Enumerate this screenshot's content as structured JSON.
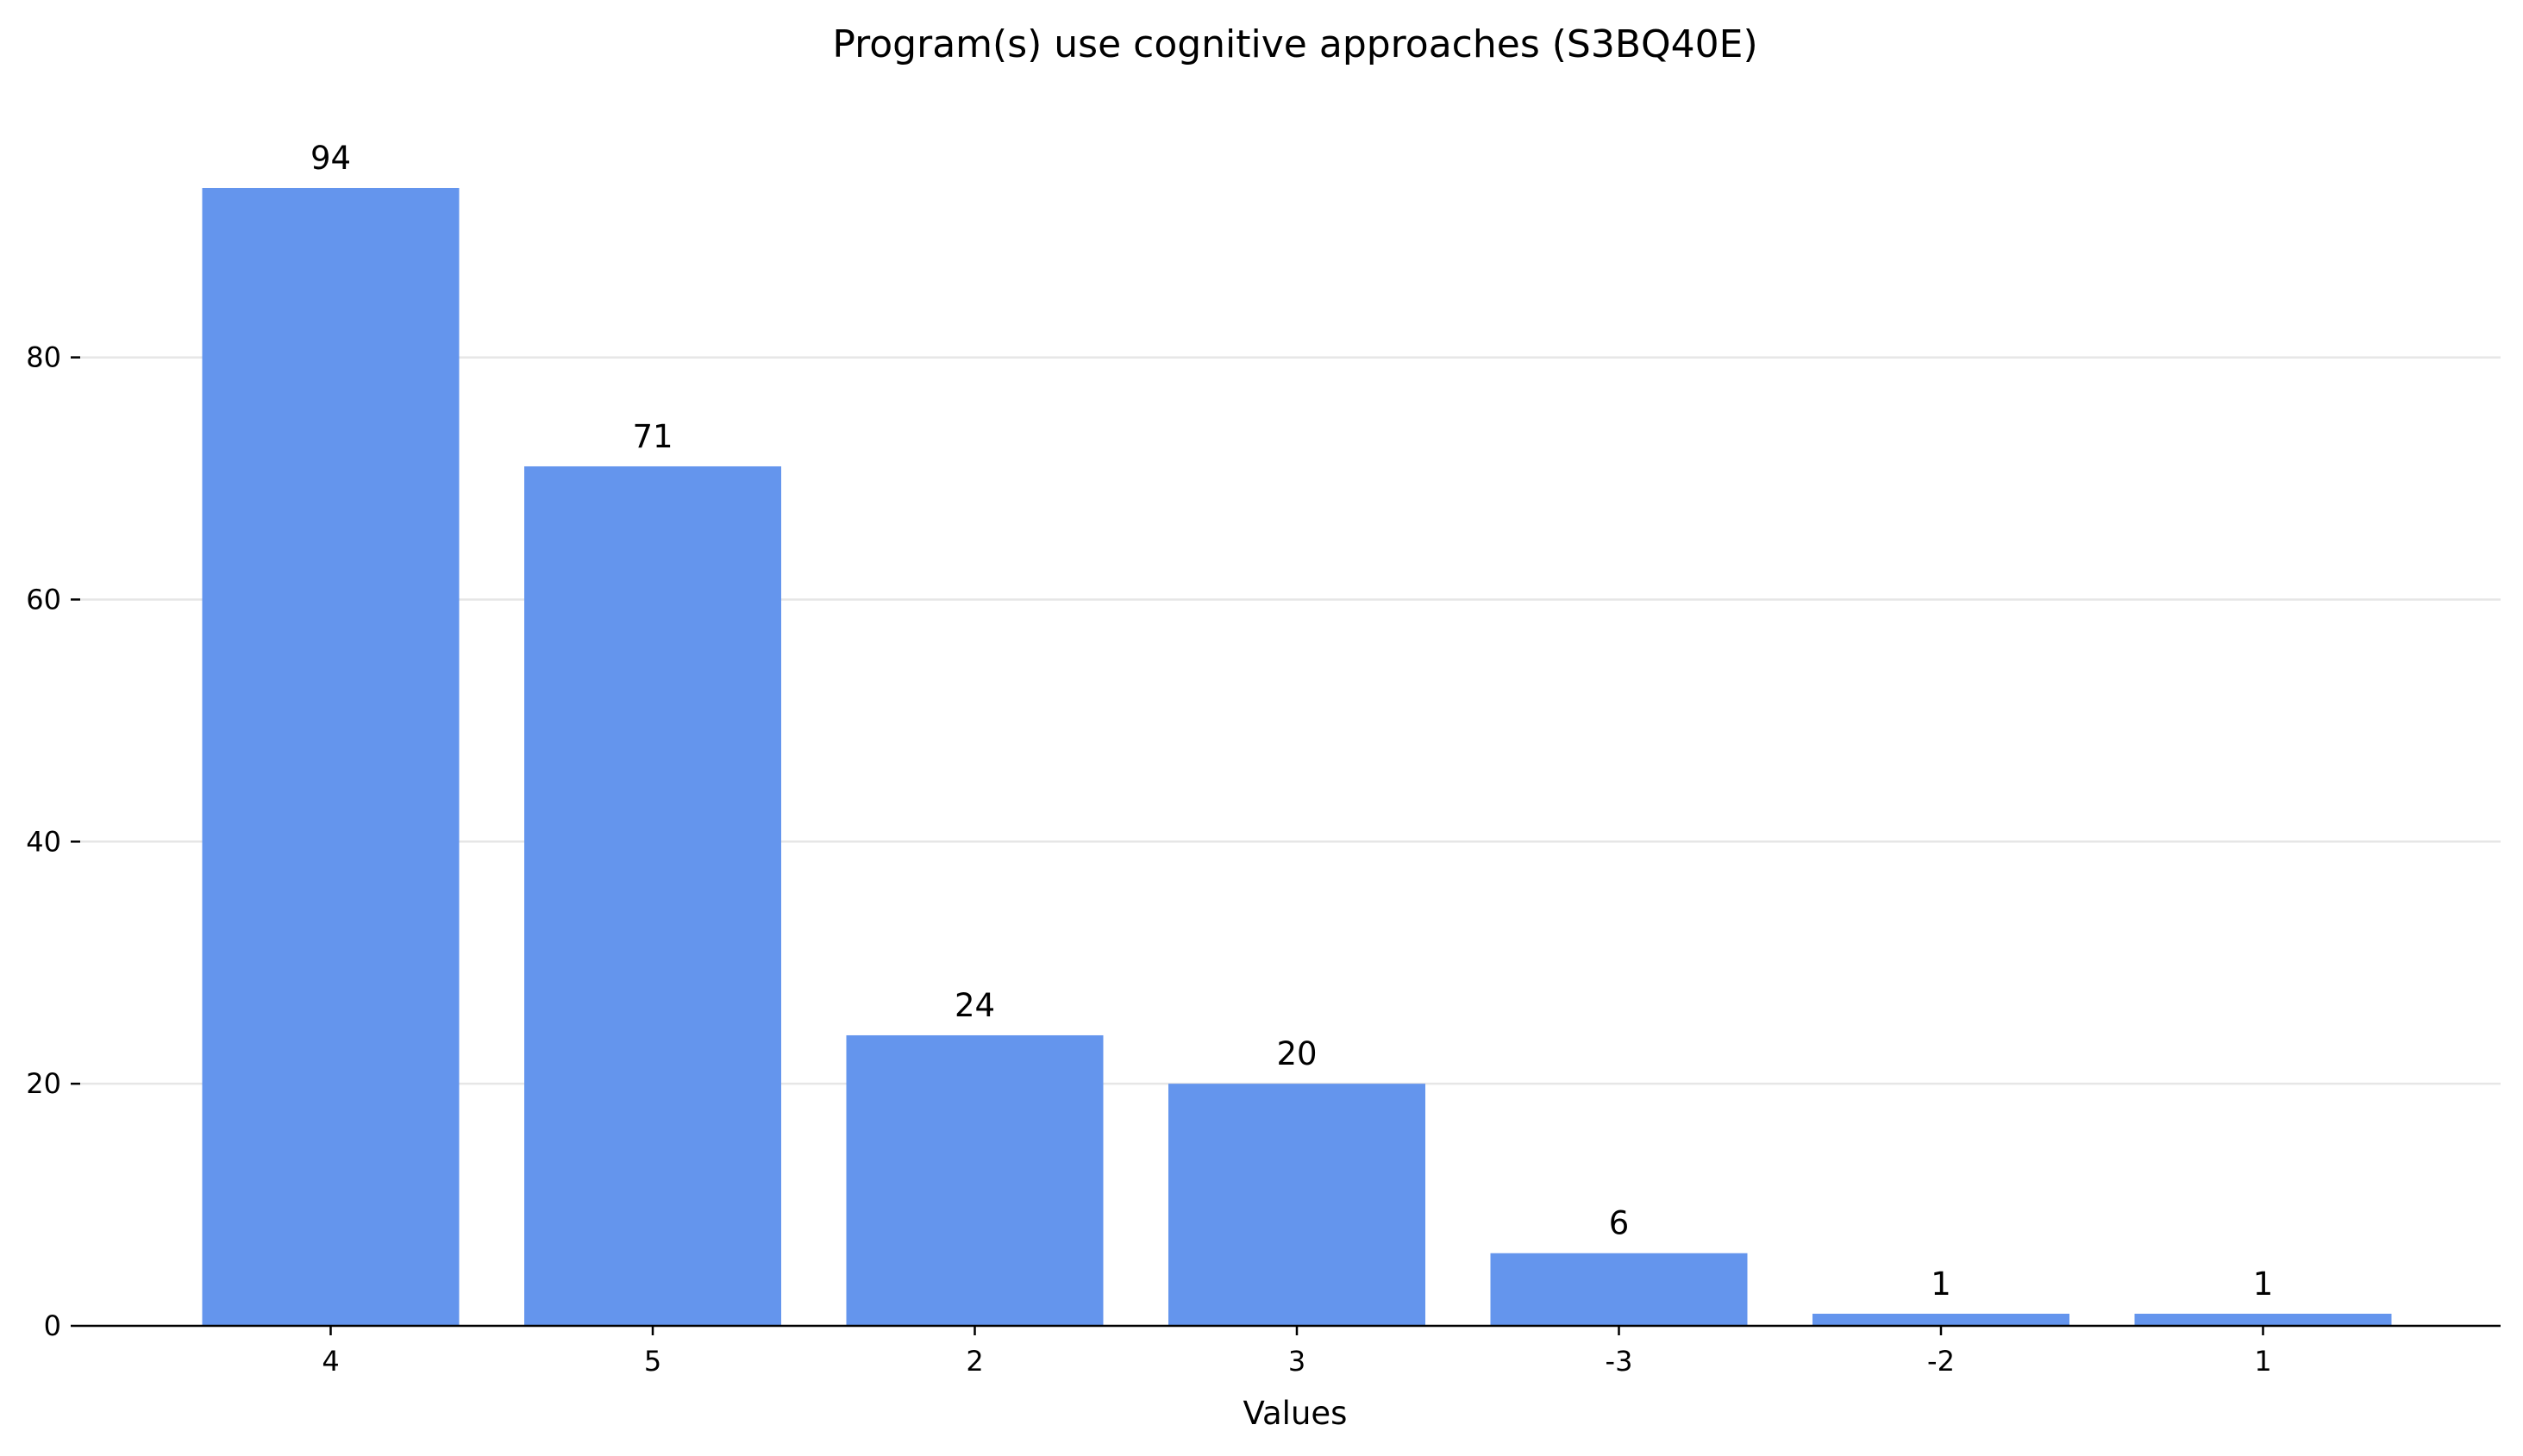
{
  "chart_data": {
    "type": "bar",
    "title": "Program(s) use cognitive approaches (S3BQ40E)",
    "xlabel": "Values",
    "ylabel": "",
    "categories": [
      "4",
      "5",
      "2",
      "3",
      "-3",
      "-2",
      "1"
    ],
    "values": [
      94,
      71,
      24,
      20,
      6,
      1,
      1
    ],
    "data_labels": [
      "94",
      "71",
      "24",
      "20",
      "6",
      "1",
      "1"
    ],
    "ylim": [
      0,
      100
    ],
    "yticks": [
      0,
      20,
      40,
      60,
      80
    ],
    "ytick_labels": [
      "0",
      "20",
      "40",
      "60",
      "80"
    ],
    "grid": "horizontal",
    "legend": "none",
    "colors": {
      "bar": "#6495ED",
      "grid": "#e6e6e6",
      "axis": "#000000"
    }
  }
}
